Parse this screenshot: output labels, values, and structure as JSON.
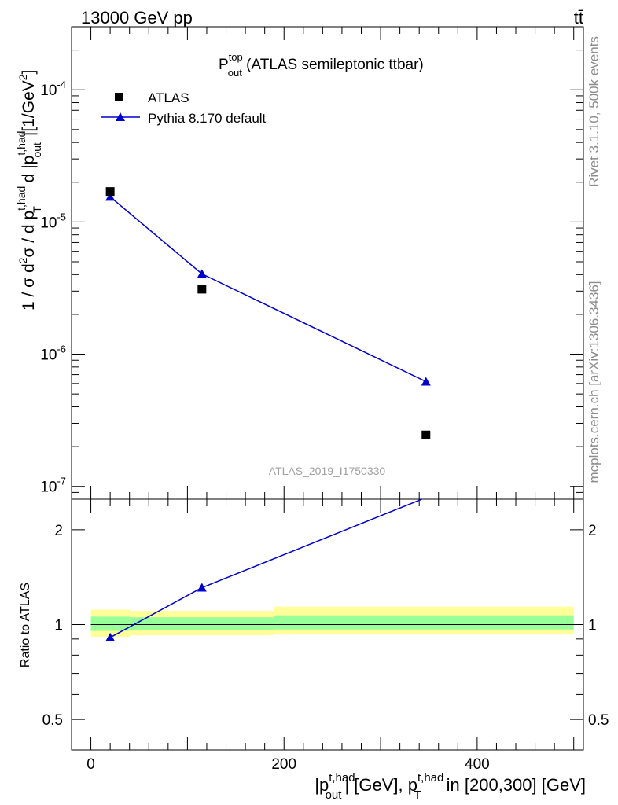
{
  "header": {
    "energy_label": "13000 GeV pp",
    "process_label": "tt̄"
  },
  "side_labels": {
    "rivet": "Rivet 3.1.10,  500k events",
    "mcplots": "mcplots.cern.ch [arXiv:1306.3436]"
  },
  "colors": {
    "data": "#000000",
    "mc": "#0000cc",
    "band_outer": "#ffff99",
    "band_inner": "#99ff99"
  },
  "chart_data": [
    {
      "type": "scatter",
      "panel": "main",
      "title_main": "P",
      "title_sup": "top",
      "title_sub": "out",
      "title_rest": " (ATLAS semileptonic ttbar)",
      "ylabel": "1 / σ d²σ / d p_T^{t,had} d |p_out^{t,had}| [1/GeV²]",
      "ylabel_parts": {
        "a": "1 / σ d",
        "a_sup": "2",
        "b": "σ / d p",
        "b_sup": "t,had",
        "b_sub": "T",
        "c": " d |p",
        "c_sup": "t,had",
        "c_sub": "out",
        "d": "|[1/GeV",
        "d_sup": "2",
        "e": "]"
      },
      "yscale": "log",
      "ylim": [
        8e-08,
        0.0003
      ],
      "xlim": [
        -20,
        510
      ],
      "y_ticks": [
        {
          "value": 1e-07,
          "base": "10",
          "exp": "-7"
        },
        {
          "value": 1e-06,
          "base": "10",
          "exp": "-6"
        },
        {
          "value": 1e-05,
          "base": "10",
          "exp": "-5"
        },
        {
          "value": 0.0001,
          "base": "10",
          "exp": "-4"
        }
      ],
      "legend": "top-left",
      "watermark": "ATLAS_2019_I1750330",
      "series": [
        {
          "name": "ATLAS",
          "marker": "square",
          "x": [
            20,
            115,
            347
          ],
          "y": [
            1.7e-05,
            3.1e-06,
            2.45e-07
          ]
        },
        {
          "name": "Pythia 8.170 default",
          "marker": "triangle",
          "line": true,
          "x": [
            20,
            115,
            347
          ],
          "y": [
            1.55e-05,
            4.05e-06,
            6.2e-07
          ]
        }
      ]
    },
    {
      "type": "line",
      "panel": "ratio",
      "ylabel": "Ratio to ATLAS",
      "yscale": "log",
      "ylim": [
        0.4,
        2.5
      ],
      "xlim": [
        -20,
        510
      ],
      "y_ticks": [
        {
          "value": 0.5,
          "label": "0.5"
        },
        {
          "value": 1,
          "label": "1"
        },
        {
          "value": 2,
          "label": "2"
        }
      ],
      "x_ticks": [
        {
          "value": 0,
          "label": "0"
        },
        {
          "value": 200,
          "label": "200"
        },
        {
          "value": 400,
          "label": "400"
        }
      ],
      "xlabel_parts": {
        "a": "|p",
        "a_sup": "t,had",
        "a_sub": "out",
        "b": "| [GeV], p",
        "b_sup": "t,had",
        "b_sub": "T",
        "c": " in [200,300] [GeV]"
      },
      "bands": [
        {
          "x": [
            0,
            40
          ],
          "outer": [
            0.915,
            1.115
          ],
          "inner": [
            0.955,
            1.06
          ]
        },
        {
          "x": [
            40,
            190
          ],
          "outer": [
            0.925,
            1.105
          ],
          "inner": [
            0.96,
            1.055
          ]
        },
        {
          "x": [
            190,
            500
          ],
          "outer": [
            0.93,
            1.14
          ],
          "inner": [
            0.965,
            1.07
          ]
        }
      ],
      "series": [
        {
          "name": "Pythia 8.170 default",
          "x": [
            20,
            115,
            347
          ],
          "y": [
            0.91,
            1.31,
            2.53
          ]
        }
      ]
    }
  ]
}
